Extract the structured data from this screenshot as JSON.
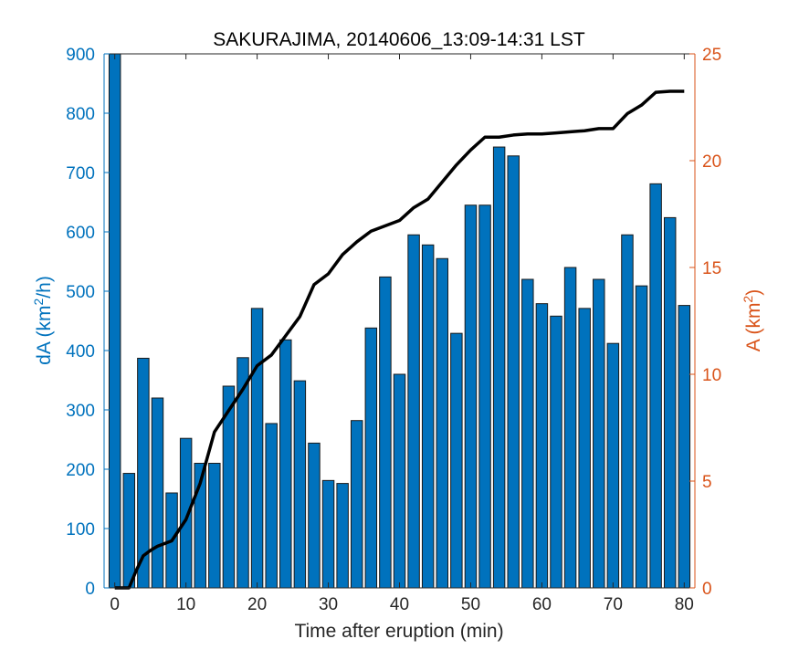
{
  "chart_data": {
    "type": "bar",
    "title": "SAKURAJIMA, 20140606_13:09-14:31 LST",
    "xlabel": "Time after eruption (min)",
    "ylabel_left": {
      "base": "dA (km",
      "sup": "2",
      "tail": "/h)"
    },
    "ylabel_right": {
      "base": "A (km",
      "sup": "2",
      "tail": ")"
    },
    "xlim": [
      -1.5,
      81.5
    ],
    "ylim_left": [
      0,
      900
    ],
    "ylim_right": [
      0,
      25
    ],
    "x_ticks": [
      "0",
      "10",
      "20",
      "30",
      "40",
      "50",
      "60",
      "70",
      "80"
    ],
    "y_left_ticks": [
      "0",
      "100",
      "200",
      "300",
      "400",
      "500",
      "600",
      "700",
      "800",
      "900"
    ],
    "y_right_ticks": [
      "0",
      "5",
      "10",
      "15",
      "20",
      "25"
    ],
    "grid": false,
    "legend": "none",
    "bar_color": "#0072BD",
    "left_axis_color": "#0072BD",
    "right_axis_color": "#D95319",
    "line_color": "#000000",
    "series": [
      {
        "kind": "bar",
        "axis": "left",
        "x": [
          0,
          2,
          4,
          6,
          8,
          10,
          12,
          14,
          16,
          18,
          20,
          22,
          24,
          26,
          28,
          30,
          32,
          34,
          36,
          38,
          40,
          42,
          44,
          46,
          48,
          50,
          52,
          54,
          56,
          58,
          60,
          62,
          64,
          66,
          68,
          70,
          72,
          74,
          76,
          78,
          80
        ],
        "values": [
          900,
          193,
          387,
          320,
          160,
          252,
          210,
          210,
          340,
          388,
          471,
          277,
          418,
          349,
          244,
          181,
          176,
          282,
          438,
          524,
          360,
          595,
          578,
          555,
          429,
          645,
          645,
          743,
          728,
          520,
          479,
          458,
          540,
          471,
          520,
          412,
          595,
          509,
          681,
          624,
          476
        ]
      },
      {
        "kind": "line",
        "axis": "right",
        "x": [
          0,
          2,
          3,
          4,
          5,
          6,
          8,
          10,
          12,
          14,
          16,
          18,
          20,
          22,
          24,
          26,
          28,
          30,
          32,
          34,
          36,
          38,
          40,
          42,
          44,
          46,
          48,
          50,
          52,
          54,
          56,
          58,
          60,
          62,
          64,
          66,
          68,
          70,
          72,
          74,
          76,
          78,
          80
        ],
        "values": [
          0,
          0,
          0.8,
          1.5,
          1.75,
          1.95,
          2.2,
          3.2,
          4.9,
          7.3,
          8.3,
          9.3,
          10.4,
          10.9,
          11.8,
          12.7,
          14.2,
          14.7,
          15.6,
          16.2,
          16.7,
          16.95,
          17.2,
          17.8,
          18.2,
          19.0,
          19.8,
          20.5,
          21.1,
          21.1,
          21.2,
          21.25,
          21.25,
          21.3,
          21.35,
          21.4,
          21.5,
          21.5,
          22.2,
          22.6,
          23.2,
          23.25,
          23.25
        ]
      }
    ]
  }
}
